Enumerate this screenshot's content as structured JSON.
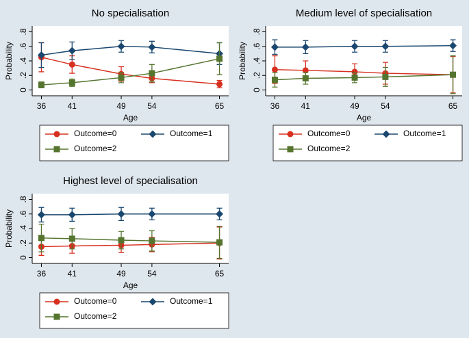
{
  "chart_data": [
    {
      "type": "line",
      "title": "No specialisation",
      "xlabel": "Age",
      "ylabel": "Probability",
      "x": [
        36,
        41,
        49,
        54,
        65
      ],
      "xlim": [
        34.5,
        66.5
      ],
      "ylim": [
        -0.08,
        0.88
      ],
      "xticks": [
        36,
        41,
        49,
        54,
        65
      ],
      "yticks": [
        {
          "value": 0,
          "label": "0"
        },
        {
          "value": 0.2,
          "label": ".2"
        },
        {
          "value": 0.4,
          "label": ".4"
        },
        {
          "value": 0.6,
          "label": ".6"
        },
        {
          "value": 0.8,
          "label": ".8"
        }
      ],
      "series": [
        {
          "name": "Outcome=0",
          "color": "#d7301f",
          "marker": "circle",
          "values": [
            0.45,
            0.35,
            0.22,
            0.16,
            0.08
          ],
          "errors": [
            0.2,
            0.12,
            0.1,
            0.06,
            0.05
          ]
        },
        {
          "name": "Outcome=1",
          "color": "#1a476f",
          "marker": "diamond",
          "values": [
            0.48,
            0.54,
            0.6,
            0.59,
            0.5
          ],
          "errors": [
            0.17,
            0.12,
            0.08,
            0.08,
            0.15
          ]
        },
        {
          "name": "Outcome=2",
          "color": "#55752f",
          "marker": "square",
          "values": [
            0.07,
            0.1,
            0.17,
            0.23,
            0.43
          ],
          "errors": [
            0.04,
            0.05,
            0.07,
            0.12,
            0.22
          ]
        }
      ]
    },
    {
      "type": "line",
      "title": "Medium level of specialisation",
      "xlabel": "Age",
      "ylabel": "Probability",
      "x": [
        36,
        41,
        49,
        54,
        65
      ],
      "xlim": [
        34.5,
        66.5
      ],
      "ylim": [
        -0.08,
        0.88
      ],
      "xticks": [
        36,
        41,
        49,
        54,
        65
      ],
      "yticks": [
        {
          "value": 0,
          "label": "0"
        },
        {
          "value": 0.2,
          "label": ".2"
        },
        {
          "value": 0.4,
          "label": ".4"
        },
        {
          "value": 0.6,
          "label": ".6"
        },
        {
          "value": 0.8,
          "label": ".8"
        }
      ],
      "series": [
        {
          "name": "Outcome=0",
          "color": "#d7301f",
          "marker": "circle",
          "values": [
            0.28,
            0.27,
            0.25,
            0.23,
            0.21
          ],
          "errors": [
            0.19,
            0.13,
            0.11,
            0.15,
            0.25
          ]
        },
        {
          "name": "Outcome=1",
          "color": "#1a476f",
          "marker": "diamond",
          "values": [
            0.59,
            0.59,
            0.6,
            0.6,
            0.61
          ],
          "errors": [
            0.1,
            0.09,
            0.08,
            0.08,
            0.08
          ]
        },
        {
          "name": "Outcome=2",
          "color": "#55752f",
          "marker": "square",
          "values": [
            0.14,
            0.16,
            0.17,
            0.18,
            0.21
          ],
          "errors": [
            0.1,
            0.08,
            0.07,
            0.13,
            0.26
          ]
        }
      ]
    },
    {
      "type": "line",
      "title": "Highest level of specialisation",
      "xlabel": "Age",
      "ylabel": "Probability",
      "x": [
        36,
        41,
        49,
        54,
        65
      ],
      "xlim": [
        34.5,
        66.5
      ],
      "ylim": [
        -0.08,
        0.88
      ],
      "xticks": [
        36,
        41,
        49,
        54,
        65
      ],
      "yticks": [
        {
          "value": 0,
          "label": "0"
        },
        {
          "value": 0.2,
          "label": ".2"
        },
        {
          "value": 0.4,
          "label": ".4"
        },
        {
          "value": 0.6,
          "label": ".6"
        },
        {
          "value": 0.8,
          "label": ".8"
        }
      ],
      "series": [
        {
          "name": "Outcome=0",
          "color": "#d7301f",
          "marker": "circle",
          "values": [
            0.15,
            0.16,
            0.17,
            0.18,
            0.2
          ],
          "errors": [
            0.12,
            0.1,
            0.1,
            0.1,
            0.22
          ]
        },
        {
          "name": "Outcome=1",
          "color": "#1a476f",
          "marker": "diamond",
          "values": [
            0.59,
            0.59,
            0.6,
            0.6,
            0.6
          ],
          "errors": [
            0.1,
            0.09,
            0.09,
            0.08,
            0.08
          ]
        },
        {
          "name": "Outcome=2",
          "color": "#55752f",
          "marker": "square",
          "values": [
            0.27,
            0.26,
            0.24,
            0.23,
            0.21
          ],
          "errors": [
            0.19,
            0.14,
            0.12,
            0.14,
            0.22
          ]
        }
      ]
    }
  ]
}
